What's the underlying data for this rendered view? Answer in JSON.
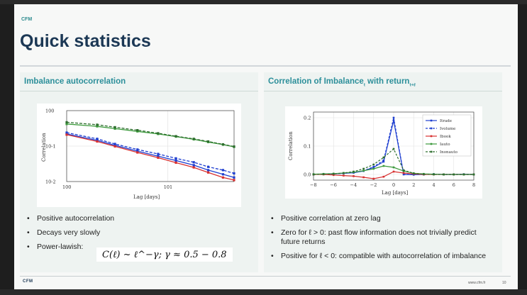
{
  "brand": "CFM",
  "title": "Quick statistics",
  "left_panel": {
    "heading": "Imbalance autocorrelation",
    "bullets": [
      "Positive autocorrelation",
      "Decays very slowly",
      "Power-lawish:"
    ],
    "formula": "C(ℓ) ~ ℓ^−γ; γ ≈ 0.5 − 0.8"
  },
  "right_panel": {
    "heading": "Correlation of Imbalance",
    "heading_sub1": "t",
    "heading_mid": " with return",
    "heading_sub2": "t+ℓ",
    "bullets": [
      "Positive correlation at zero lag",
      "Zero for ℓ > 0: past flow information does not trivially predict future returns",
      "Positive for ℓ < 0: compatible with autocorrelation of imbalance"
    ]
  },
  "footer": {
    "logo": "CFM",
    "url": "www.cfm.fr",
    "page": "10"
  },
  "colors": {
    "accent": "#2c8f9a",
    "title": "#1c3855",
    "blue": "#1f3fd0",
    "red": "#d83030",
    "green": "#3c9a3c",
    "dark_green": "#2e6e2e"
  },
  "chart_data": [
    {
      "type": "line",
      "xlabel": "Lag [days]",
      "ylabel": "Correlation",
      "xscale": "log",
      "yscale": "log",
      "x_ticks": [
        "10^0",
        "10^1"
      ],
      "y_ticks": [
        "10^0",
        "10^-1",
        "10^-2"
      ],
      "xlim": [
        1,
        45
      ],
      "ylim": [
        0.01,
        1
      ],
      "grid": true,
      "x": [
        1,
        2,
        3,
        5,
        8,
        12,
        18,
        25,
        35,
        45
      ],
      "series": [
        {
          "color": "#1f3fd0",
          "dash": "dashed",
          "values": [
            0.24,
            0.16,
            0.115,
            0.08,
            0.06,
            0.045,
            0.035,
            0.026,
            0.021,
            0.017
          ]
        },
        {
          "color": "#1f3fd0",
          "dash": "solid",
          "values": [
            0.22,
            0.145,
            0.105,
            0.072,
            0.052,
            0.039,
            0.029,
            0.021,
            0.016,
            0.013
          ]
        },
        {
          "color": "#d83030",
          "dash": "solid",
          "values": [
            0.21,
            0.135,
            0.098,
            0.066,
            0.047,
            0.034,
            0.025,
            0.018,
            0.013,
            0.011
          ]
        },
        {
          "color": "#3c9a3c",
          "dash": "solid",
          "values": [
            0.42,
            0.36,
            0.31,
            0.26,
            0.22,
            0.185,
            0.155,
            0.13,
            0.11,
            0.095
          ]
        },
        {
          "color": "#2e6e2e",
          "dash": "dashed",
          "values": [
            0.47,
            0.4,
            0.34,
            0.28,
            0.23,
            0.19,
            0.16,
            0.135,
            0.112,
            0.097
          ]
        }
      ]
    },
    {
      "type": "line",
      "xlabel": "Lag [days]",
      "ylabel": "Correlation",
      "xlim": [
        -8,
        8
      ],
      "ylim": [
        -0.02,
        0.22
      ],
      "x_ticks": [
        -8,
        -6,
        -4,
        -2,
        0,
        2,
        4,
        6,
        8
      ],
      "y_ticks": [
        0.0,
        0.1,
        0.2
      ],
      "grid": true,
      "legend": "top-right",
      "x": [
        -8,
        -7,
        -6,
        -5,
        -4,
        -3,
        -2,
        -1,
        0,
        1,
        2,
        3,
        4,
        5,
        6,
        7,
        8
      ],
      "series": [
        {
          "name": "I^trade",
          "color": "#1f3fd0",
          "dash": "solid",
          "values": [
            0.0,
            0.001,
            0.002,
            0.004,
            0.006,
            0.012,
            0.025,
            0.045,
            0.19,
            0.0,
            -0.001,
            0.0,
            0.001,
            0.0,
            0.0,
            0.001,
            0.0
          ]
        },
        {
          "name": "I^volume",
          "color": "#1f3fd0",
          "dash": "dashed",
          "values": [
            0.0,
            0.001,
            0.002,
            0.004,
            0.007,
            0.013,
            0.027,
            0.05,
            0.2,
            0.001,
            0.0,
            0.0,
            0.001,
            0.0,
            0.0,
            0.0,
            0.0
          ]
        },
        {
          "name": "I^book",
          "color": "#d83030",
          "dash": "solid",
          "values": [
            0.0,
            0.0,
            -0.002,
            -0.004,
            -0.006,
            -0.01,
            -0.015,
            -0.008,
            0.01,
            0.005,
            0.002,
            0.0,
            0.0,
            0.0,
            0.0,
            0.0,
            0.0
          ]
        },
        {
          "name": "I^auto",
          "color": "#3c9a3c",
          "dash": "solid",
          "values": [
            0.001,
            0.002,
            0.003,
            0.005,
            0.008,
            0.013,
            0.02,
            0.03,
            0.025,
            0.012,
            0.004,
            0.002,
            0.001,
            0.0,
            0.0,
            0.0,
            0.0
          ]
        },
        {
          "name": "I^nonauto",
          "color": "#2e6e2e",
          "dash": "dashed",
          "values": [
            0.0,
            0.001,
            0.002,
            0.005,
            0.01,
            0.02,
            0.035,
            0.06,
            0.09,
            0.015,
            0.004,
            0.001,
            0.0,
            0.0,
            0.0,
            0.0,
            0.0
          ]
        }
      ]
    }
  ]
}
